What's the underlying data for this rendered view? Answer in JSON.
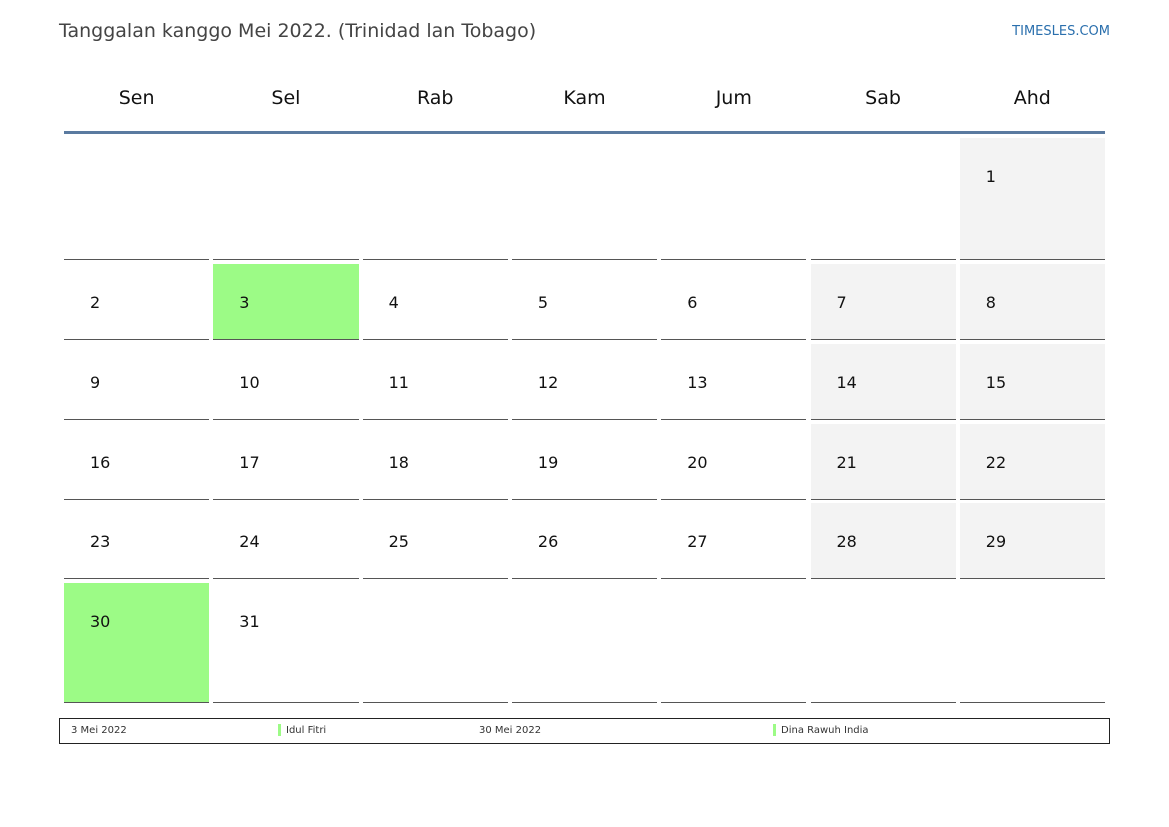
{
  "title": "Tanggalan kanggo Mei 2022. (Trinidad lan Tobago)",
  "brand": "TIMESLES.COM",
  "colors": {
    "holiday": "#9cfb86",
    "weekend": "#f3f3f3",
    "header_rule": "#5a7aa0",
    "brand": "#2a6fad"
  },
  "weekdays": [
    "Sen",
    "Sel",
    "Rab",
    "Kam",
    "Jum",
    "Sab",
    "Ahd"
  ],
  "weeks": [
    [
      "",
      "",
      "",
      "",
      "",
      "",
      "1"
    ],
    [
      "2",
      "3",
      "4",
      "5",
      "6",
      "7",
      "8"
    ],
    [
      "9",
      "10",
      "11",
      "12",
      "13",
      "14",
      "15"
    ],
    [
      "16",
      "17",
      "18",
      "19",
      "20",
      "21",
      "22"
    ],
    [
      "23",
      "24",
      "25",
      "26",
      "27",
      "28",
      "29"
    ],
    [
      "30",
      "31",
      "",
      "",
      "",
      "",
      ""
    ]
  ],
  "holidays": [
    "3",
    "30"
  ],
  "legend": [
    {
      "date": "3 Mei 2022",
      "name": "Idul Fitri"
    },
    {
      "date": "30 Mei 2022",
      "name": "Dina Rawuh India"
    }
  ]
}
